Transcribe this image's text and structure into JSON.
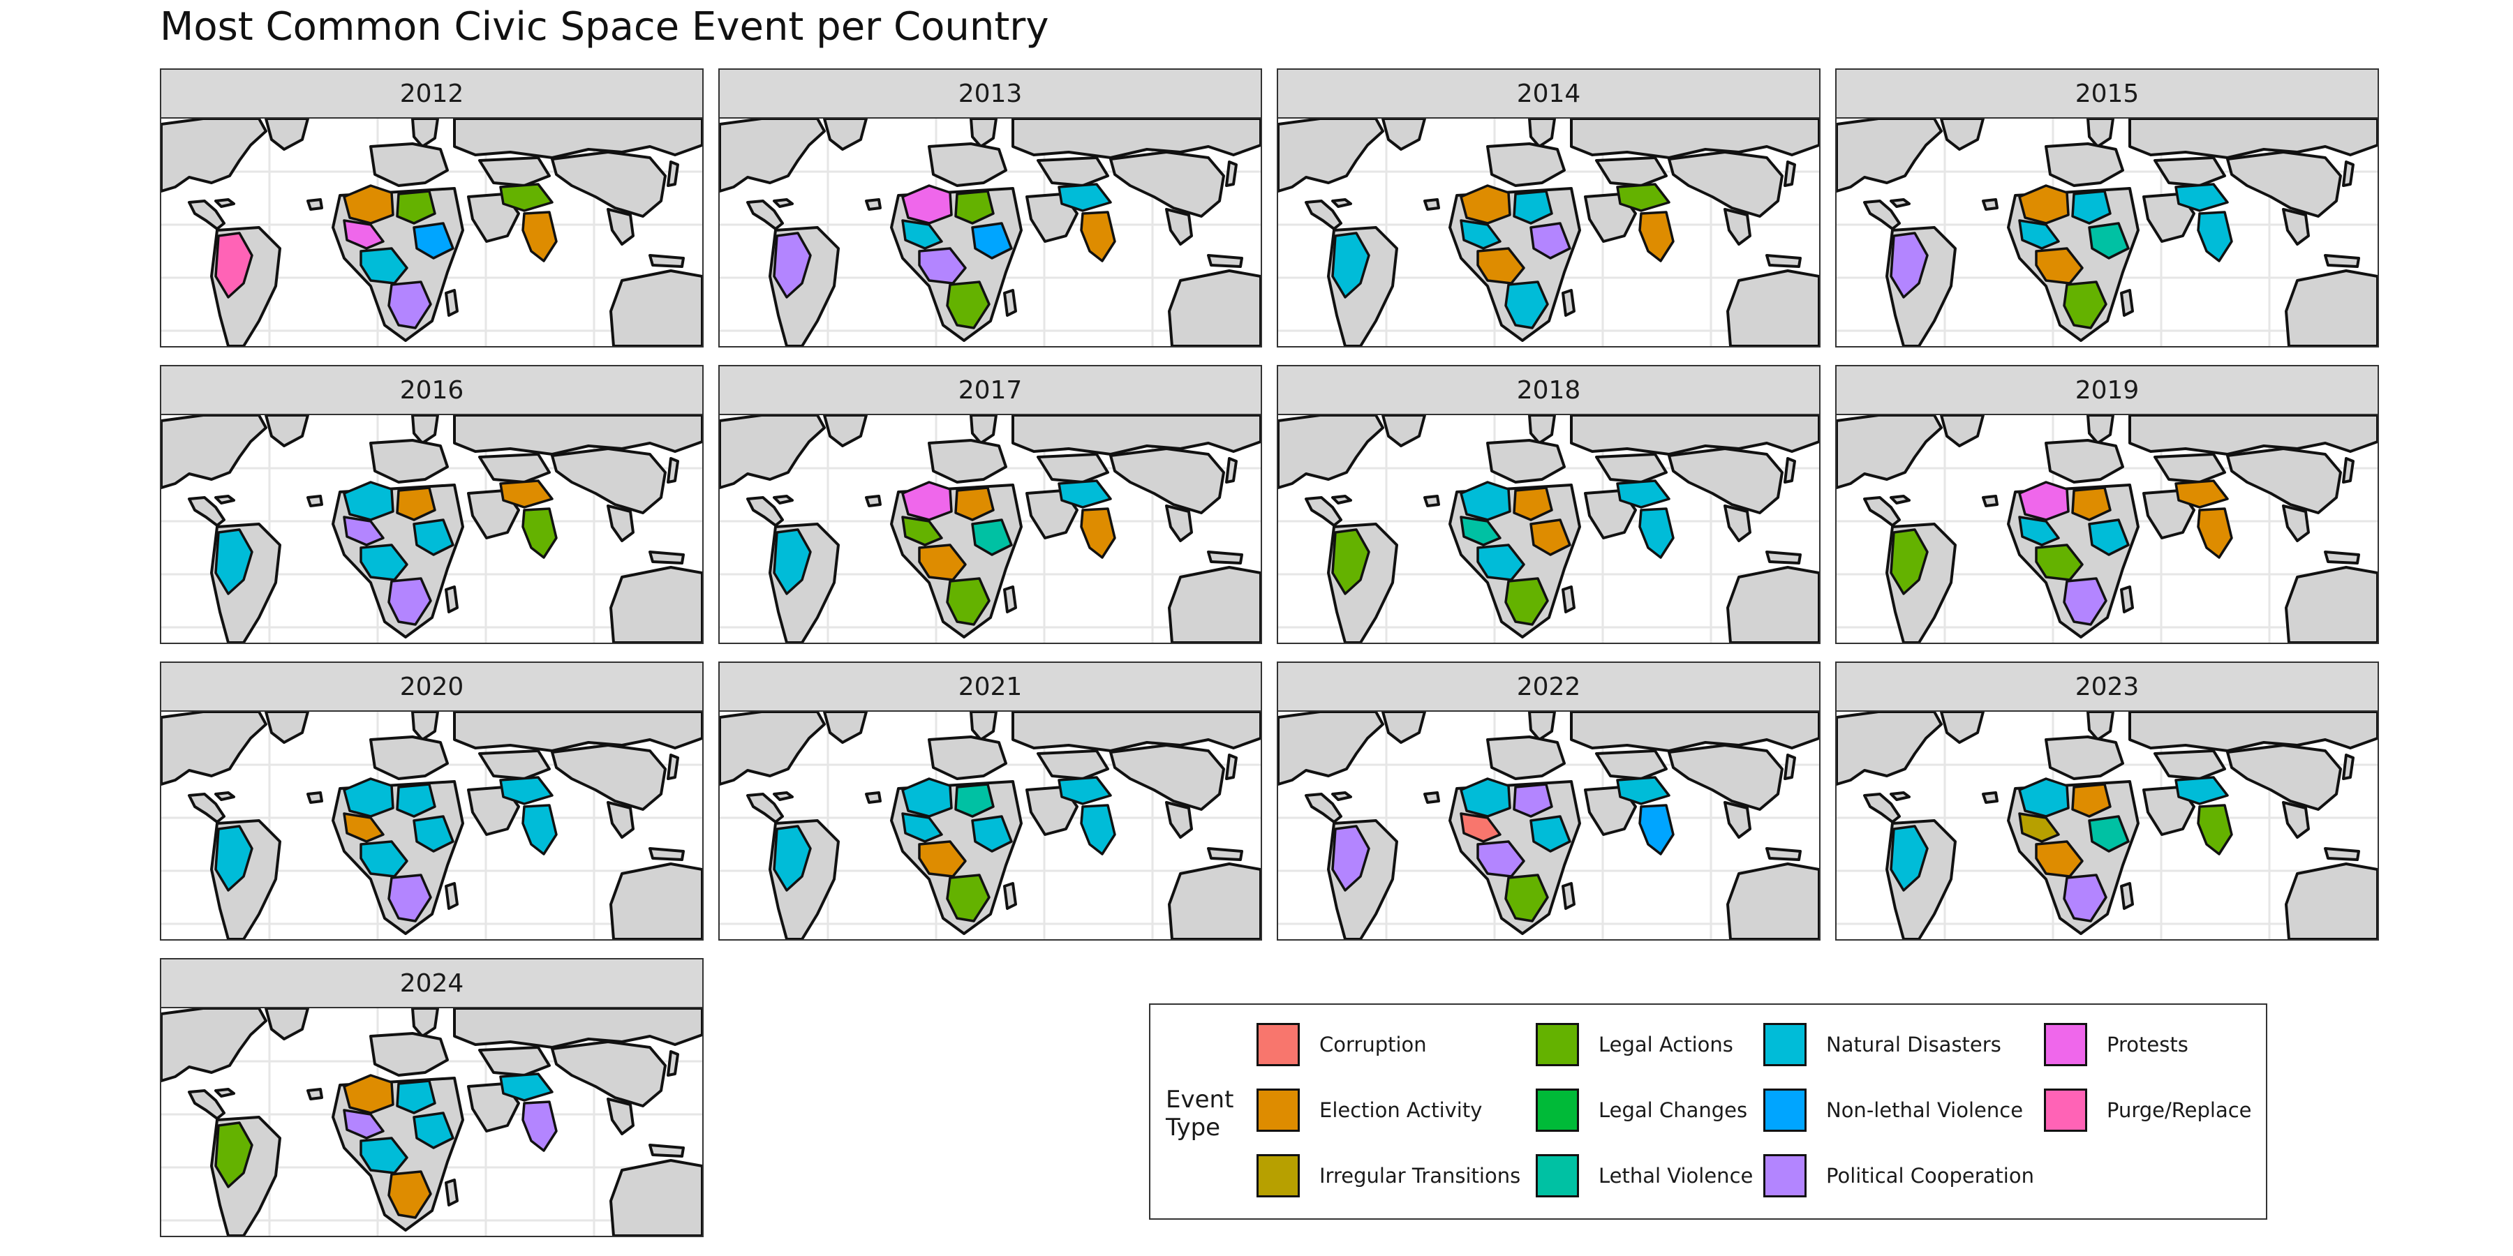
{
  "title": "Most Common Civic Space Event per Country",
  "panels": [
    {
      "year": "2012",
      "palette": [
        "election",
        "legal_actions",
        "protests",
        "non_lethal",
        "natural",
        "political",
        "legal_actions",
        "election",
        "purge"
      ]
    },
    {
      "year": "2013",
      "palette": [
        "protests",
        "legal_actions",
        "natural",
        "non_lethal",
        "political",
        "legal_actions",
        "natural",
        "election",
        "political"
      ]
    },
    {
      "year": "2014",
      "palette": [
        "election",
        "natural",
        "natural",
        "political",
        "election",
        "natural",
        "legal_actions",
        "election",
        "natural"
      ]
    },
    {
      "year": "2015",
      "palette": [
        "election",
        "natural",
        "natural",
        "lethal",
        "election",
        "legal_actions",
        "natural",
        "natural",
        "political"
      ]
    },
    {
      "year": "2016",
      "palette": [
        "natural",
        "election",
        "political",
        "natural",
        "natural",
        "political",
        "election",
        "legal_actions",
        "natural"
      ]
    },
    {
      "year": "2017",
      "palette": [
        "protests",
        "election",
        "legal_actions",
        "lethal",
        "election",
        "legal_actions",
        "natural",
        "election",
        "natural"
      ]
    },
    {
      "year": "2018",
      "palette": [
        "natural",
        "election",
        "lethal",
        "election",
        "natural",
        "legal_actions",
        "natural",
        "natural",
        "legal_actions"
      ]
    },
    {
      "year": "2019",
      "palette": [
        "protests",
        "election",
        "natural",
        "natural",
        "legal_actions",
        "political",
        "election",
        "election",
        "legal_actions"
      ]
    },
    {
      "year": "2020",
      "palette": [
        "natural",
        "natural",
        "election",
        "natural",
        "natural",
        "political",
        "natural",
        "natural",
        "natural"
      ]
    },
    {
      "year": "2021",
      "palette": [
        "natural",
        "lethal",
        "natural",
        "natural",
        "election",
        "legal_actions",
        "natural",
        "natural",
        "natural"
      ]
    },
    {
      "year": "2022",
      "palette": [
        "natural",
        "political",
        "corruption",
        "natural",
        "political",
        "legal_actions",
        "natural",
        "non_lethal",
        "political"
      ]
    },
    {
      "year": "2023",
      "palette": [
        "natural",
        "election",
        "irregular",
        "lethal",
        "election",
        "political",
        "natural",
        "legal_actions",
        "natural"
      ]
    },
    {
      "year": "2024",
      "palette": [
        "election",
        "natural",
        "political",
        "natural",
        "natural",
        "election",
        "natural",
        "political",
        "legal_actions"
      ]
    }
  ],
  "legend": {
    "title": "Event Type",
    "items": [
      {
        "key": "corruption",
        "label": "Corruption",
        "color": "#f8766d"
      },
      {
        "key": "election",
        "label": "Election Activity",
        "color": "#de8c00"
      },
      {
        "key": "irregular",
        "label": "Irregular Transitions",
        "color": "#b7a000"
      },
      {
        "key": "legal_actions",
        "label": "Legal Actions",
        "color": "#64b200"
      },
      {
        "key": "legal_changes",
        "label": "Legal Changes",
        "color": "#00ba38"
      },
      {
        "key": "lethal",
        "label": "Lethal Violence",
        "color": "#00c1a3"
      },
      {
        "key": "natural",
        "label": "Natural Disasters",
        "color": "#00bcd8"
      },
      {
        "key": "non_lethal",
        "label": "Non-lethal Violence",
        "color": "#00a5ff"
      },
      {
        "key": "political",
        "label": "Political Cooperation",
        "color": "#b385ff"
      },
      {
        "key": "protests",
        "label": "Protests",
        "color": "#ef67eb"
      },
      {
        "key": "purge",
        "label": "Purge/Replace",
        "color": "#ff63b6"
      }
    ]
  },
  "colors": {
    "land": "#d3d3d3",
    "border": "#111111",
    "grid": "#e6e6e6",
    "strip": "#d9d9d9"
  }
}
